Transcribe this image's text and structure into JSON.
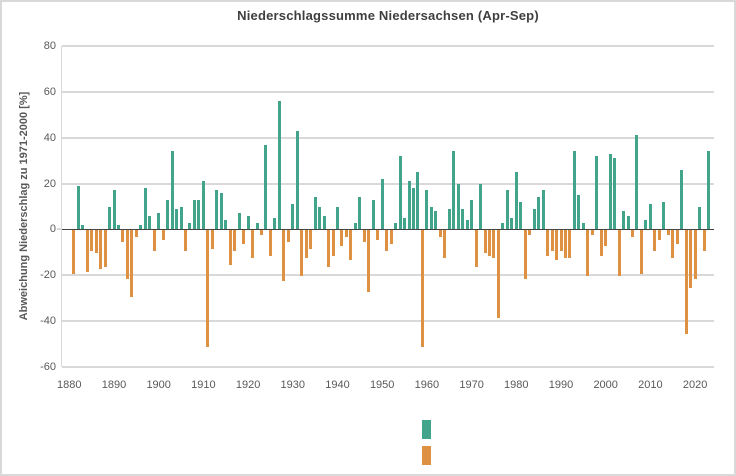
{
  "page": {
    "background": "#ffffff",
    "border_color": "#d9d9d9"
  },
  "chart": {
    "title": "Niederschlagssumme Niedersachsen (Apr-Sep)",
    "y_axis_label": "Abweichung Niederschlag zu 1971-2000 [%]",
    "colors": {
      "positive_bar": "#41a48b",
      "negative_bar": "#de9143",
      "gridline": "#d9d9d9",
      "zero_axis": "#444444",
      "title_text": "#3f3f3f",
      "tick_text": "#595959"
    },
    "legend": [
      {
        "name": "positive",
        "color": "#41a48b",
        "label": ""
      },
      {
        "name": "negative",
        "color": "#de9143",
        "label": ""
      }
    ]
  },
  "chart_data": {
    "type": "bar",
    "title": "Niederschlagssumme Niedersachsen (Apr-Sep)",
    "xlabel": "",
    "ylabel": "Abweichung Niederschlag zu 1971-2000 [%]",
    "unit": "%",
    "grid": true,
    "legend_position": "bottom-center",
    "ylim": [
      -60,
      80
    ],
    "yticks": [
      80,
      60,
      40,
      20,
      0,
      -20,
      -40,
      -60
    ],
    "xticks": [
      1880,
      1890,
      1900,
      1910,
      1920,
      1930,
      1940,
      1950,
      1960,
      1970,
      1980,
      1990,
      2000,
      2010,
      2020
    ],
    "x": [
      1881,
      1882,
      1883,
      1884,
      1885,
      1886,
      1887,
      1888,
      1889,
      1890,
      1891,
      1892,
      1893,
      1894,
      1895,
      1896,
      1897,
      1898,
      1899,
      1900,
      1901,
      1902,
      1903,
      1904,
      1905,
      1906,
      1907,
      1908,
      1909,
      1910,
      1911,
      1912,
      1913,
      1914,
      1915,
      1916,
      1917,
      1918,
      1919,
      1920,
      1921,
      1922,
      1923,
      1924,
      1925,
      1926,
      1927,
      1928,
      1929,
      1930,
      1931,
      1932,
      1933,
      1934,
      1935,
      1936,
      1937,
      1938,
      1939,
      1940,
      1941,
      1942,
      1943,
      1944,
      1945,
      1946,
      1947,
      1948,
      1949,
      1950,
      1951,
      1952,
      1953,
      1954,
      1955,
      1956,
      1957,
      1958,
      1959,
      1960,
      1961,
      1962,
      1963,
      1964,
      1965,
      1966,
      1967,
      1968,
      1969,
      1970,
      1971,
      1972,
      1973,
      1974,
      1975,
      1976,
      1977,
      1978,
      1979,
      1980,
      1981,
      1982,
      1983,
      1984,
      1985,
      1986,
      1987,
      1988,
      1989,
      1990,
      1991,
      1992,
      1993,
      1994,
      1995,
      1996,
      1997,
      1998,
      1999,
      2000,
      2001,
      2002,
      2003,
      2004,
      2005,
      2006,
      2007,
      2008,
      2009,
      2010,
      2011,
      2012,
      2013,
      2014,
      2015,
      2016,
      2017,
      2018,
      2019,
      2020,
      2021,
      2022,
      2023
    ],
    "values": [
      -19,
      19,
      2,
      -18,
      -9,
      -10,
      -17,
      -16,
      10,
      17,
      2,
      -5,
      -21,
      -29,
      -3,
      2,
      18,
      6,
      -9,
      7,
      -4,
      13,
      34,
      9,
      10,
      -9,
      3,
      13,
      13,
      21,
      -51,
      -8,
      17,
      16,
      4,
      -15,
      -9,
      7,
      -6,
      6,
      -12,
      3,
      -2,
      37,
      -11,
      5,
      56,
      -22,
      -5,
      11,
      43,
      -20,
      -12,
      -8,
      14,
      10,
      6,
      -16,
      -11,
      10,
      -7,
      -3,
      -13,
      3,
      14,
      -5,
      -27,
      13,
      -4,
      22,
      -9,
      -6,
      3,
      32,
      5,
      21,
      18,
      25,
      -51,
      17,
      10,
      8,
      -3,
      -12,
      9,
      34,
      20,
      9,
      4,
      13,
      -16,
      20,
      -10,
      -11,
      -12,
      -38,
      3,
      17,
      5,
      25,
      12,
      -21,
      -2,
      9,
      14,
      17,
      -11,
      -9,
      -13,
      -9,
      -12,
      -12,
      34,
      15,
      3,
      -20,
      -2,
      32,
      -11,
      -7,
      33,
      31,
      -20,
      8,
      6,
      -3,
      41,
      -19,
      4,
      11,
      -9,
      -4,
      12,
      -2,
      -12,
      -6,
      26,
      -45,
      -25,
      -21,
      10,
      -9,
      34
    ]
  }
}
